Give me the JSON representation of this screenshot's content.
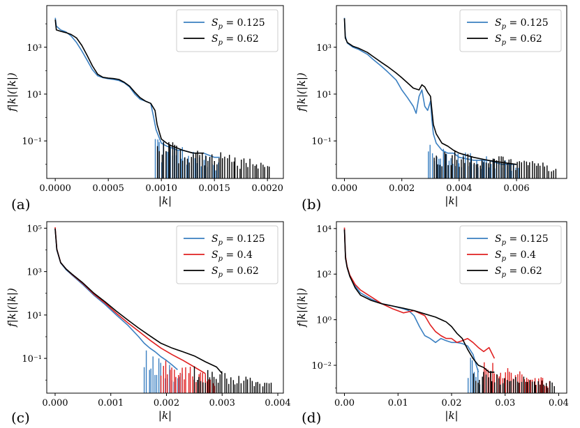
{
  "chart_data": [
    {
      "panel": "(a)",
      "type": "line",
      "xscale": "linear",
      "yscale": "log",
      "xlim": [
        -8e-05,
        0.00215
      ],
      "ylim": [
        0.0025,
        60000
      ],
      "xticks": [
        0,
        0.0005,
        0.001,
        0.0015,
        0.002
      ],
      "xtick_labels": [
        "0.0000",
        "0.0005",
        "0.0010",
        "0.0015",
        "0.0020"
      ],
      "yticks": [
        0.1,
        10,
        1000
      ],
      "ytick_labels": [
        "10⁻¹",
        "10¹",
        "10³"
      ],
      "xlabel": "|k|",
      "ylabel": "f|k|(|k|)",
      "legend": {
        "position": "top-right",
        "entries": [
          {
            "label": "Sp = 0.125",
            "color": "#3a7fc1"
          },
          {
            "label": "Sp = 0.62",
            "color": "#000000"
          }
        ]
      },
      "series": [
        {
          "name": "Sp = 0.125",
          "color": "#3a7fc1",
          "x": [
            0,
            1e-05,
            5e-05,
            0.0001,
            0.00015,
            0.0002,
            0.00025,
            0.0003,
            0.00035,
            0.0004,
            0.00045,
            0.0005,
            0.00055,
            0.0006,
            0.00065,
            0.0007,
            0.00075,
            0.0008,
            0.00085,
            0.0009,
            0.00093,
            0.00095,
            0.001,
            0.00105,
            0.0011,
            0.00115,
            0.0012,
            0.0013,
            0.0014,
            0.0015,
            0.00155
          ],
          "y": [
            18000,
            8000,
            5500,
            4500,
            3000,
            1600,
            700,
            280,
            110,
            60,
            50,
            45,
            42,
            38,
            30,
            20,
            10,
            6,
            5,
            4,
            0.9,
            0.3,
            0.08,
            0.06,
            0.05,
            0.04,
            0.04,
            0.03,
            0.03,
            0.02,
            0.02
          ],
          "spikes": {
            "from": 0.00094,
            "to": 0.00155,
            "high": 0.15,
            "low": 0.003
          }
        },
        {
          "name": "Sp = 0.62",
          "color": "#000000",
          "x": [
            0,
            1e-05,
            5e-05,
            0.0001,
            0.00015,
            0.0002,
            0.00025,
            0.0003,
            0.00035,
            0.0004,
            0.00045,
            0.0005,
            0.00055,
            0.0006,
            0.00065,
            0.0007,
            0.00075,
            0.0008,
            0.00085,
            0.0009,
            0.00094,
            0.00096,
            0.001,
            0.00105,
            0.0011,
            0.00115,
            0.0012,
            0.0013,
            0.0014
          ],
          "y": [
            15000,
            5500,
            4800,
            4200,
            3500,
            2500,
            1200,
            450,
            160,
            70,
            52,
            48,
            46,
            42,
            32,
            22,
            12,
            7,
            5,
            4,
            2,
            0.5,
            0.12,
            0.08,
            0.06,
            0.05,
            0.04,
            0.03,
            0.03
          ],
          "spikes": {
            "from": 0.00096,
            "to": 0.00203,
            "high": 0.12,
            "low": 0.003
          }
        }
      ]
    },
    {
      "panel": "(b)",
      "type": "line",
      "xscale": "linear",
      "yscale": "log",
      "xlim": [
        -0.00028,
        0.00775
      ],
      "ylim": [
        0.0025,
        60000
      ],
      "xticks": [
        0,
        0.002,
        0.004,
        0.006
      ],
      "xtick_labels": [
        "0.000",
        "0.002",
        "0.004",
        "0.006"
      ],
      "yticks": [
        0.1,
        10,
        1000
      ],
      "ytick_labels": [
        "10⁻¹",
        "10¹",
        "10³"
      ],
      "xlabel": "|k|",
      "ylabel": "f|k|(|k|)",
      "legend": {
        "position": "top-right",
        "entries": [
          {
            "label": "Sp = 0.125",
            "color": "#3a7fc1"
          },
          {
            "label": "Sp = 0.62",
            "color": "#000000"
          }
        ]
      },
      "series": [
        {
          "name": "Sp = 0.125",
          "color": "#3a7fc1",
          "x": [
            0,
            3e-05,
            0.0001,
            0.0003,
            0.0005,
            0.0008,
            0.001,
            0.0013,
            0.0015,
            0.0018,
            0.002,
            0.0022,
            0.0024,
            0.0025,
            0.0026,
            0.0027,
            0.0028,
            0.0029,
            0.003,
            0.00305,
            0.0031,
            0.0032,
            0.0034,
            0.0036,
            0.0038,
            0.004,
            0.0045,
            0.005,
            0.0055,
            0.006
          ],
          "y": [
            18000,
            3000,
            1500,
            1000,
            800,
            500,
            300,
            150,
            90,
            40,
            15,
            7,
            3,
            1.5,
            8,
            15,
            3,
            2,
            5,
            0.8,
            0.2,
            0.08,
            0.04,
            0.03,
            0.03,
            0.02,
            0.015,
            0.015,
            0.01,
            0.01
          ],
          "spikes": {
            "from": 0.0029,
            "to": 0.0061,
            "high": 0.08,
            "low": 0.003
          }
        },
        {
          "name": "Sp = 0.62",
          "color": "#000000",
          "x": [
            0,
            3e-05,
            0.0001,
            0.0003,
            0.0005,
            0.0008,
            0.001,
            0.0013,
            0.0015,
            0.0018,
            0.002,
            0.0022,
            0.0024,
            0.0026,
            0.0027,
            0.0028,
            0.0029,
            0.003,
            0.0031,
            0.0032,
            0.0034,
            0.0036,
            0.0038,
            0.004,
            0.0045,
            0.005,
            0.0055,
            0.006
          ],
          "y": [
            17000,
            2500,
            1600,
            1100,
            900,
            600,
            400,
            220,
            150,
            80,
            50,
            30,
            18,
            15,
            25,
            20,
            12,
            8,
            0.5,
            0.2,
            0.08,
            0.06,
            0.04,
            0.03,
            0.02,
            0.015,
            0.012,
            0.01
          ],
          "spikes": {
            "from": 0.0031,
            "to": 0.0074,
            "high": 0.06,
            "low": 0.003
          }
        }
      ]
    },
    {
      "panel": "(c)",
      "type": "line",
      "xscale": "linear",
      "yscale": "log",
      "xlim": [
        -0.00015,
        0.0041
      ],
      "ylim": [
        0.0025,
        200000
      ],
      "xticks": [
        0,
        0.001,
        0.002,
        0.003,
        0.004
      ],
      "xtick_labels": [
        "0.000",
        "0.001",
        "0.002",
        "0.003",
        "0.004"
      ],
      "yticks": [
        0.1,
        10,
        1000,
        100000
      ],
      "ytick_labels": [
        "10⁻¹",
        "10¹",
        "10³",
        "10⁵"
      ],
      "xlabel": "|k|",
      "ylabel": "f|k|(|k|)",
      "legend": {
        "position": "top-right",
        "entries": [
          {
            "label": "Sp = 0.125",
            "color": "#3a7fc1"
          },
          {
            "label": "Sp = 0.4",
            "color": "#e02020"
          },
          {
            "label": "Sp = 0.62",
            "color": "#000000"
          }
        ]
      },
      "series": [
        {
          "name": "Sp = 0.125",
          "color": "#3a7fc1",
          "x": [
            0,
            3e-05,
            0.0001,
            0.0002,
            0.0003,
            0.0005,
            0.0007,
            0.0009,
            0.0011,
            0.0013,
            0.0015,
            0.0016,
            0.0017,
            0.0018,
            0.0019,
            0.002,
            0.0021,
            0.0022
          ],
          "y": [
            100000,
            10000,
            2500,
            1200,
            700,
            250,
            80,
            30,
            10,
            3.5,
            1,
            0.5,
            0.3,
            0.2,
            0.12,
            0.08,
            0.05,
            0.03
          ],
          "spikes": {
            "from": 0.0016,
            "to": 0.0023,
            "high": 0.3,
            "low": 0.003
          }
        },
        {
          "name": "Sp = 0.4",
          "color": "#e02020",
          "x": [
            0,
            3e-05,
            0.0001,
            0.0002,
            0.0003,
            0.0005,
            0.0007,
            0.0009,
            0.0011,
            0.0013,
            0.0015,
            0.0017,
            0.0019,
            0.0021,
            0.0023,
            0.0025,
            0.0027
          ],
          "y": [
            110000,
            11000,
            2600,
            1300,
            750,
            280,
            90,
            35,
            12,
            4.5,
            1.8,
            0.7,
            0.3,
            0.15,
            0.08,
            0.04,
            0.02
          ],
          "spikes": {
            "from": 0.0019,
            "to": 0.0029,
            "high": 0.15,
            "low": 0.003
          }
        },
        {
          "name": "Sp = 0.62",
          "color": "#000000",
          "x": [
            0,
            3e-05,
            0.0001,
            0.0002,
            0.0003,
            0.0005,
            0.0007,
            0.0009,
            0.0011,
            0.0013,
            0.0015,
            0.0017,
            0.0019,
            0.0021,
            0.0023,
            0.0025,
            0.0027,
            0.0029,
            0.003
          ],
          "y": [
            95000,
            10500,
            2600,
            1300,
            780,
            300,
            100,
            40,
            15,
            6,
            2.5,
            1.1,
            0.5,
            0.3,
            0.2,
            0.13,
            0.07,
            0.04,
            0.02
          ],
          "spikes": {
            "from": 0.0025,
            "to": 0.0039,
            "high": 0.05,
            "low": 0.003
          }
        }
      ]
    },
    {
      "panel": "(d)",
      "type": "line",
      "xscale": "linear",
      "yscale": "log",
      "xlim": [
        -0.0015,
        0.0415
      ],
      "ylim": [
        0.0006,
        20000
      ],
      "xticks": [
        0,
        0.01,
        0.02,
        0.03,
        0.04
      ],
      "xtick_labels": [
        "0.00",
        "0.01",
        "0.02",
        "0.03",
        "0.04"
      ],
      "yticks": [
        0.01,
        1,
        100,
        10000
      ],
      "ytick_labels": [
        "10⁻²",
        "10⁰",
        "10²",
        "10⁴"
      ],
      "xlabel": "|k|",
      "ylabel": "f|k|(|k|)",
      "legend": {
        "position": "top-right",
        "entries": [
          {
            "label": "Sp = 0.125",
            "color": "#3a7fc1"
          },
          {
            "label": "Sp = 0.4",
            "color": "#e02020"
          },
          {
            "label": "Sp = 0.62",
            "color": "#000000"
          }
        ]
      },
      "series": [
        {
          "name": "Sp = 0.125",
          "color": "#3a7fc1",
          "x": [
            0,
            0.0002,
            0.0005,
            0.001,
            0.002,
            0.003,
            0.005,
            0.007,
            0.009,
            0.011,
            0.012,
            0.013,
            0.014,
            0.015,
            0.016,
            0.017,
            0.018,
            0.019,
            0.02,
            0.021,
            0.022,
            0.023,
            0.024,
            0.025
          ],
          "y": [
            10000,
            600,
            200,
            80,
            30,
            15,
            8,
            5,
            4,
            3,
            2.5,
            1.5,
            0.5,
            0.2,
            0.15,
            0.1,
            0.15,
            0.12,
            0.1,
            0.1,
            0.09,
            0.07,
            0.03,
            0.005
          ],
          "spikes": {
            "from": 0.023,
            "to": 0.026,
            "high": 0.03,
            "low": 0.0007
          }
        },
        {
          "name": "Sp = 0.4",
          "color": "#e02020",
          "x": [
            0,
            0.0002,
            0.0005,
            0.001,
            0.002,
            0.003,
            0.005,
            0.007,
            0.009,
            0.011,
            0.013,
            0.015,
            0.016,
            0.017,
            0.018,
            0.019,
            0.02,
            0.021,
            0.022,
            0.023,
            0.024,
            0.025,
            0.026,
            0.027,
            0.028
          ],
          "y": [
            11000,
            600,
            220,
            90,
            35,
            20,
            10,
            5,
            3,
            2,
            2.5,
            1.5,
            0.6,
            0.3,
            0.2,
            0.15,
            0.15,
            0.1,
            0.12,
            0.15,
            0.1,
            0.06,
            0.04,
            0.06,
            0.02
          ],
          "spikes": {
            "from": 0.026,
            "to": 0.0385,
            "high": 0.02,
            "low": 0.0007
          }
        },
        {
          "name": "Sp = 0.62",
          "color": "#000000",
          "x": [
            0,
            0.0002,
            0.0005,
            0.001,
            0.002,
            0.003,
            0.005,
            0.007,
            0.009,
            0.011,
            0.013,
            0.015,
            0.017,
            0.019,
            0.02,
            0.021,
            0.022,
            0.023,
            0.024,
            0.025,
            0.026,
            0.027,
            0.028
          ],
          "y": [
            9000,
            500,
            200,
            80,
            25,
            12,
            7,
            5,
            4,
            3.2,
            2.5,
            1.8,
            1.3,
            0.8,
            0.5,
            0.25,
            0.15,
            0.05,
            0.02,
            0.01,
            0.008,
            0.005,
            0.005
          ],
          "spikes": {
            "from": 0.024,
            "to": 0.0395,
            "high": 0.008,
            "low": 0.0007
          }
        }
      ]
    }
  ]
}
